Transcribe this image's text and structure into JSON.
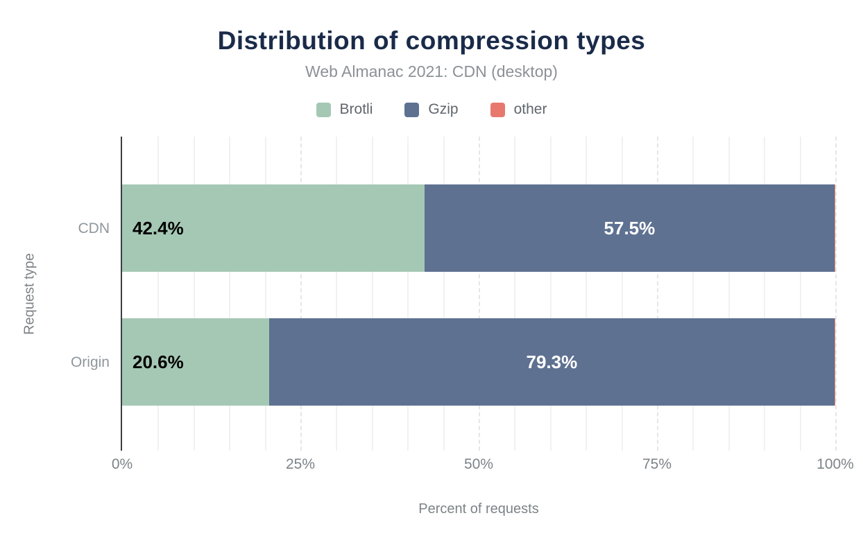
{
  "header": {
    "title": "Distribution of compression types",
    "subtitle": "Web Almanac 2021: CDN (desktop)"
  },
  "chart_data": {
    "type": "bar",
    "orientation": "horizontal",
    "stacked": true,
    "title": "Distribution of compression types",
    "subtitle": "Web Almanac 2021: CDN (desktop)",
    "categories": [
      "CDN",
      "Origin"
    ],
    "series": [
      {
        "name": "Brotli",
        "color": "#a5c8b5",
        "values": [
          42.4,
          20.6
        ]
      },
      {
        "name": "Gzip",
        "color": "#5e7191",
        "values": [
          57.5,
          79.3
        ]
      },
      {
        "name": "other",
        "color": "#e8786e",
        "values": [
          0.1,
          0.1
        ]
      }
    ],
    "data_labels": [
      [
        "42.4%",
        "57.5%",
        ""
      ],
      [
        "20.6%",
        "79.3%",
        ""
      ]
    ],
    "xlabel": "Percent of requests",
    "ylabel": "Request type",
    "xlim": [
      0,
      100
    ],
    "x_ticks": [
      {
        "label": "0%",
        "value": 0
      },
      {
        "label": "25%",
        "value": 25
      },
      {
        "label": "50%",
        "value": 50
      },
      {
        "label": "75%",
        "value": 75
      },
      {
        "label": "100%",
        "value": 100
      }
    ],
    "grid": {
      "vertical": true,
      "minor_step": 5,
      "major_step": 25
    },
    "legend_position": "top"
  },
  "colors": {
    "title": "#1a2b49",
    "subtitle": "#8c9197",
    "axis_line": "#3a3d40",
    "grid_minor": "#f0f2f2",
    "grid_major": "#e4e7e7",
    "tick_label": "#7c8388",
    "category_label": "#8f969b",
    "axis_title": "#7c8388",
    "value_label_on_light": "#000000",
    "value_label_on_dark": "#ffffff"
  }
}
